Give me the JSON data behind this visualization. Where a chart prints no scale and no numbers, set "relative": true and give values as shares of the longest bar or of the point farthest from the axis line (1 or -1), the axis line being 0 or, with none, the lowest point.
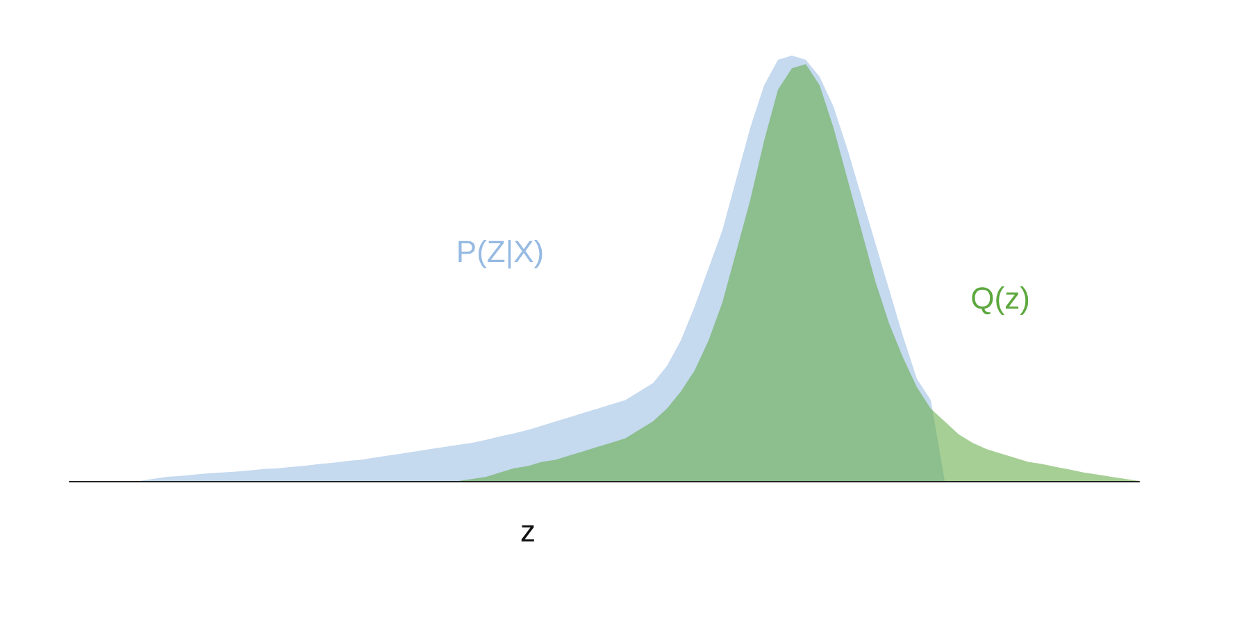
{
  "chart_data": {
    "type": "area",
    "relative": true,
    "xlabel": "z",
    "categories": [
      null,
      null,
      null,
      null,
      null,
      null,
      null,
      null,
      null,
      null,
      null,
      null,
      null,
      null,
      null,
      null,
      null,
      null,
      null,
      null,
      null,
      null,
      null,
      null,
      null,
      null,
      null,
      null,
      null,
      null,
      null,
      null,
      null,
      null,
      null,
      null,
      null,
      null,
      null,
      null,
      null,
      null,
      null,
      null,
      null,
      null,
      null,
      null,
      null,
      null,
      null,
      null,
      null,
      null,
      null,
      null,
      null,
      null,
      null,
      null,
      null,
      null,
      null,
      null,
      null,
      null,
      null,
      null,
      null,
      null,
      null,
      null,
      null,
      null,
      null,
      null,
      null,
      null
    ],
    "series": [
      {
        "name": "P(Z|X)",
        "color": "#96bae2",
        "values": [
          0,
          0,
          0,
          0,
          0,
          0,
          0.005,
          0.01,
          0.012,
          0.015,
          0.018,
          0.02,
          0.022,
          0.025,
          0.028,
          0.03,
          0.033,
          0.036,
          0.04,
          0.043,
          0.047,
          0.05,
          0.055,
          0.06,
          0.065,
          0.07,
          0.075,
          0.08,
          0.085,
          0.09,
          0.097,
          0.105,
          0.112,
          0.12,
          0.13,
          0.14,
          0.15,
          0.16,
          0.17,
          0.18,
          0.19,
          0.21,
          0.23,
          0.27,
          0.33,
          0.41,
          0.5,
          0.59,
          0.71,
          0.83,
          0.93,
          0.99,
          1,
          0.99,
          0.95,
          0.88,
          0.78,
          0.67,
          0.56,
          0.45,
          0.34,
          0.24,
          0.19,
          0,
          0,
          0,
          0,
          0,
          0,
          0,
          0,
          0,
          0,
          0,
          0,
          0,
          0,
          0
        ]
      },
      {
        "name": "Q(z)",
        "color": "#5da83e",
        "values": [
          0,
          0,
          0,
          0,
          0,
          0,
          0,
          0,
          0,
          0,
          0,
          0,
          0,
          0,
          0,
          0,
          0,
          0,
          0,
          0,
          0,
          0,
          0,
          0,
          0,
          0,
          0,
          0,
          0,
          0.005,
          0.01,
          0.02,
          0.03,
          0.035,
          0.045,
          0.05,
          0.06,
          0.07,
          0.08,
          0.09,
          0.1,
          0.12,
          0.14,
          0.17,
          0.21,
          0.26,
          0.33,
          0.42,
          0.54,
          0.66,
          0.8,
          0.92,
          0.97,
          0.98,
          0.93,
          0.83,
          0.71,
          0.59,
          0.47,
          0.37,
          0.29,
          0.22,
          0.17,
          0.14,
          0.11,
          0.09,
          0.075,
          0.065,
          0.055,
          0.045,
          0.04,
          0.033,
          0.027,
          0.02,
          0.015,
          0.01,
          0.005,
          0
        ]
      }
    ]
  }
}
